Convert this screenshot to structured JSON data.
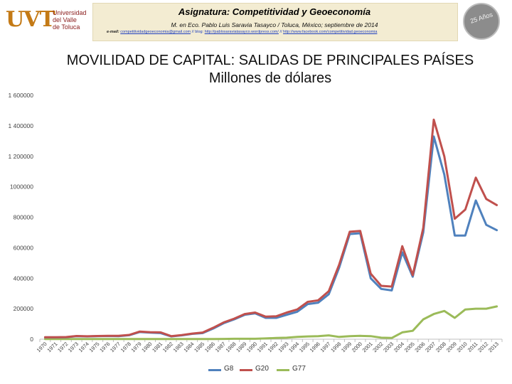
{
  "header": {
    "title": "Asignatura: Competitividad y Geoeconomía",
    "author_line": "M. en Eco. Pablo Luis Saravia Tasayco / Toluca, México; septiembre de 2014",
    "email_label": "e-mail:",
    "email": "competitividadgeoeconomia@gmail.com",
    "blog_label": "// blog:",
    "blog": "http://pablosaraviatasayco.wordpress.com/",
    "facebook_label": "//",
    "facebook": "http://www.facebook.com/competitividad.geoeconomia"
  },
  "logo": {
    "mark": "UVT",
    "text_line1": "Universidad",
    "text_line2": "del Valle",
    "text_line3": "de Toluca"
  },
  "badge": {
    "text": "25 Años"
  },
  "chart_data": {
    "type": "line",
    "title_line1": "MOVILIDAD  DE CAPITAL: SALIDAS DE PRINCIPALES PAÍSES",
    "title_line2": "Millones de dólares",
    "x": [
      "1970",
      "1971",
      "1972",
      "1973",
      "1974",
      "1975",
      "1976",
      "1977",
      "1978",
      "1979",
      "1980",
      "1981",
      "1982",
      "1983",
      "1984",
      "1985",
      "1986",
      "1987",
      "1988",
      "1989",
      "1990",
      "1991",
      "1992",
      "1993",
      "1994",
      "1995",
      "1996",
      "1997",
      "1998",
      "1999",
      "2000",
      "2001",
      "2002",
      "2003",
      "2004",
      "2005",
      "2006",
      "2007",
      "2008",
      "2009",
      "2010",
      "2011",
      "2012",
      "2013"
    ],
    "ylim": [
      0,
      1600000
    ],
    "yticks": [
      0,
      200000,
      400000,
      600000,
      800000,
      1000000,
      1200000,
      1400000,
      1600000
    ],
    "ytick_labels": [
      "0",
      "200000",
      "400000",
      "600000",
      "800000",
      "1000000",
      "1 200000",
      "1 400000",
      "1 600000"
    ],
    "series": [
      {
        "name": "G8",
        "color": "#4f81bd",
        "values": [
          12000,
          12000,
          13000,
          20000,
          18000,
          20000,
          21000,
          20000,
          26000,
          47000,
          43000,
          40000,
          18000,
          25000,
          35000,
          40000,
          70000,
          105000,
          130000,
          160000,
          170000,
          140000,
          140000,
          160000,
          180000,
          230000,
          240000,
          295000,
          470000,
          690000,
          695000,
          400000,
          330000,
          320000,
          570000,
          410000,
          700000,
          1330000,
          1080000,
          680000,
          680000,
          910000,
          750000,
          715000
        ]
      },
      {
        "name": "G20",
        "color": "#c0504d",
        "values": [
          13000,
          13000,
          14000,
          21000,
          19000,
          21000,
          22000,
          22000,
          28000,
          50000,
          46000,
          45000,
          20000,
          27000,
          37000,
          44000,
          75000,
          110000,
          135000,
          165000,
          175000,
          148000,
          150000,
          175000,
          195000,
          245000,
          255000,
          315000,
          490000,
          705000,
          710000,
          430000,
          350000,
          345000,
          610000,
          420000,
          730000,
          1440000,
          1200000,
          790000,
          850000,
          1060000,
          920000,
          880000
        ]
      },
      {
        "name": "G77",
        "color": "#9bbb59",
        "values": [
          1000,
          1000,
          1000,
          1000,
          1000,
          1000,
          1000,
          1000,
          1000,
          1000,
          1000,
          1000,
          1000,
          1000,
          1000,
          1000,
          1000,
          2000,
          3000,
          3000,
          3000,
          5000,
          8000,
          10000,
          15000,
          18000,
          20000,
          25000,
          15000,
          20000,
          22000,
          20000,
          10000,
          8000,
          45000,
          55000,
          130000,
          165000,
          185000,
          140000,
          195000,
          200000,
          200000,
          215000
        ]
      }
    ],
    "legend_position": "bottom",
    "grid": false
  }
}
